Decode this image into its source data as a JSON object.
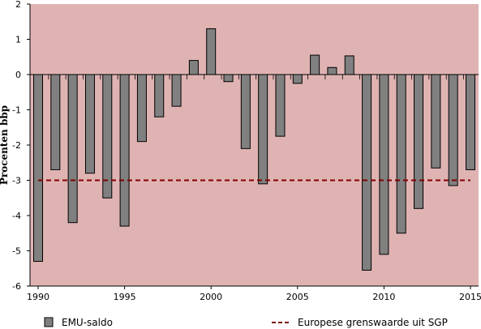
{
  "chart_data": {
    "type": "bar",
    "ylabel": "Procenten bbp",
    "xlabel": "",
    "title": "",
    "ylim": [
      -6,
      2
    ],
    "yticks": [
      2,
      1,
      0,
      -1,
      -2,
      -3,
      -4,
      -5,
      -6
    ],
    "xlim": [
      1990,
      2015
    ],
    "xticks": [
      1990,
      1995,
      2000,
      2005,
      2010,
      2015
    ],
    "x": [
      1990,
      1991,
      1992,
      1993,
      1994,
      1995,
      1996,
      1997,
      1998,
      1999,
      2000,
      2001,
      2002,
      2003,
      2004,
      2005,
      2006,
      2007,
      2008,
      2009,
      2010,
      2011,
      2012,
      2013,
      2014,
      2015
    ],
    "series": [
      {
        "name": "EMU-saldo",
        "type": "bar",
        "values": [
          -5.3,
          -2.7,
          -4.2,
          -2.8,
          -3.5,
          -4.3,
          -1.9,
          -1.2,
          -0.9,
          0.4,
          1.3,
          -0.2,
          -2.1,
          -3.1,
          -1.75,
          -0.25,
          0.55,
          0.2,
          0.53,
          -5.55,
          -5.1,
          -4.5,
          -3.8,
          -2.65,
          -3.15,
          -2.7
        ]
      },
      {
        "name": "Europese grenswaarde uit SGP",
        "type": "line",
        "style": "dashed",
        "y": -3
      }
    ],
    "legend_position": "bottom",
    "colors": {
      "plot_background": "#e0b3b3",
      "bar_fill": "#808080",
      "bar_stroke": "#000000",
      "limit_line": "#800000"
    }
  }
}
